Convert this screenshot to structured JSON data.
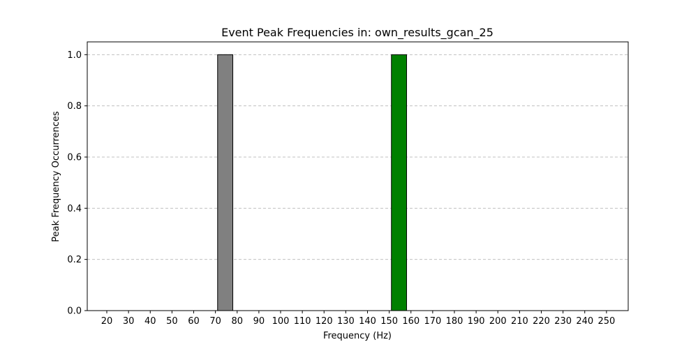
{
  "chart_data": {
    "type": "bar",
    "title": "Event Peak Frequencies in: own_results_gcan_25",
    "xlabel": "Frequency (Hz)",
    "ylabel": "Peak Frequency Occurrences",
    "x_ticks": [
      20,
      30,
      40,
      50,
      60,
      70,
      80,
      90,
      100,
      110,
      120,
      130,
      140,
      150,
      160,
      170,
      180,
      190,
      200,
      210,
      220,
      230,
      240,
      250
    ],
    "y_ticks": [
      "0.0",
      "0.2",
      "0.4",
      "0.6",
      "0.8",
      "1.0"
    ],
    "xlim": [
      11,
      260
    ],
    "ylim": [
      0,
      1.05
    ],
    "grid": "y-dashed",
    "bars": [
      {
        "x_start": 71,
        "x_end": 78,
        "value": 1.0,
        "color": "#808080"
      },
      {
        "x_start": 151,
        "x_end": 158,
        "value": 1.0,
        "color": "#008000"
      }
    ],
    "colors": {
      "grid": "#c0c0c0",
      "edge": "#000000"
    }
  }
}
